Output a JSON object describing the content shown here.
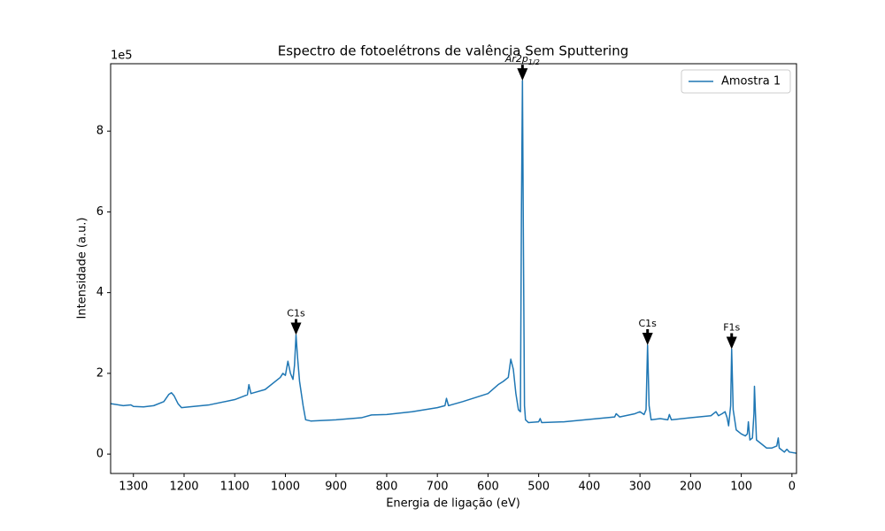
{
  "chart_data": {
    "type": "line",
    "title": "Espectro de fotoelétrons de valência Sem Sputtering",
    "xlabel": "Energia de ligação (eV)",
    "ylabel": "Intensidade (a.u.)",
    "y_offset_label": "1e5",
    "xlim": [
      1345,
      -9
    ],
    "ylim": [
      -0.48,
      9.67
    ],
    "xticks": [
      1300,
      1200,
      1100,
      1000,
      900,
      800,
      700,
      600,
      500,
      400,
      300,
      200,
      100,
      0
    ],
    "yticks": [
      0,
      2,
      4,
      6,
      8
    ],
    "legend": "upper right",
    "x": [
      1345,
      1320,
      1305,
      1300,
      1280,
      1260,
      1240,
      1230,
      1225,
      1220,
      1212,
      1205,
      1190,
      1150,
      1100,
      1075,
      1072,
      1068,
      1040,
      1010,
      1005,
      1000,
      995,
      990,
      985,
      982,
      979,
      976,
      972,
      965,
      960,
      950,
      900,
      850,
      830,
      800,
      750,
      700,
      685,
      682,
      678,
      650,
      600,
      580,
      570,
      560,
      555,
      550,
      545,
      540,
      536,
      534,
      532,
      530,
      528,
      526,
      520,
      500,
      497,
      494,
      450,
      400,
      350,
      347,
      340,
      310,
      300,
      292,
      288,
      285,
      282,
      278,
      260,
      245,
      242,
      238,
      200,
      160,
      150,
      145,
      138,
      132,
      128,
      125,
      121,
      119,
      116,
      110,
      100,
      92,
      88,
      86,
      83,
      78,
      75,
      74,
      72,
      70,
      50,
      40,
      30,
      27,
      25,
      15,
      10,
      5,
      -9
    ],
    "series": [
      {
        "name": "Amostra 1",
        "color": "#1f77b4",
        "values": [
          1.25,
          1.2,
          1.22,
          1.18,
          1.17,
          1.2,
          1.3,
          1.48,
          1.52,
          1.45,
          1.25,
          1.15,
          1.17,
          1.22,
          1.35,
          1.47,
          1.72,
          1.5,
          1.6,
          1.9,
          2.0,
          1.95,
          2.3,
          2.0,
          1.85,
          2.2,
          2.95,
          2.4,
          1.8,
          1.2,
          0.85,
          0.82,
          0.85,
          0.9,
          0.97,
          0.98,
          1.05,
          1.15,
          1.2,
          1.38,
          1.2,
          1.3,
          1.5,
          1.72,
          1.8,
          1.9,
          2.35,
          2.1,
          1.5,
          1.1,
          1.05,
          6.0,
          9.25,
          5.0,
          1.2,
          0.85,
          0.78,
          0.8,
          0.88,
          0.78,
          0.8,
          0.86,
          0.92,
          1.0,
          0.92,
          1.0,
          1.05,
          0.98,
          1.1,
          2.7,
          1.2,
          0.85,
          0.88,
          0.85,
          0.98,
          0.85,
          0.9,
          0.95,
          1.05,
          0.95,
          1.0,
          1.05,
          0.9,
          0.7,
          1.2,
          2.6,
          1.1,
          0.6,
          0.5,
          0.45,
          0.5,
          0.8,
          0.35,
          0.4,
          1.0,
          1.68,
          1.0,
          0.35,
          0.15,
          0.15,
          0.2,
          0.4,
          0.15,
          0.05,
          0.12,
          0.05,
          0.02
        ]
      }
    ],
    "annotations": [
      {
        "text": "Ar2p",
        "subscript": "1/2",
        "x": 532,
        "y": 9.25
      },
      {
        "text": "C1s",
        "x": 979,
        "y": 2.95
      },
      {
        "text": "C1s",
        "x": 285,
        "y": 2.7
      },
      {
        "text": "F1s",
        "x": 119,
        "y": 2.6
      }
    ]
  }
}
